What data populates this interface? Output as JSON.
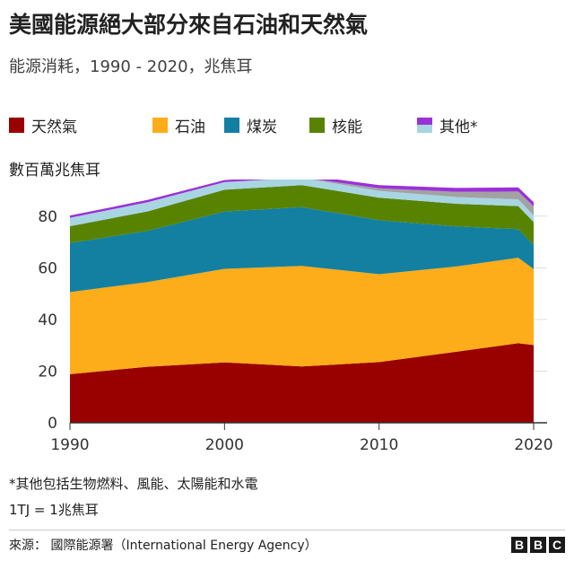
{
  "header": {
    "title": "美國能源絕大部分來自石油和天然氣",
    "subtitle": "能源消耗，1990 - 2020，兆焦耳"
  },
  "legend": [
    {
      "label": "天然氣",
      "color": "#990000"
    },
    {
      "label": "石油",
      "color": "#fdac1a"
    },
    {
      "label": "煤炭",
      "color": "#1380a1"
    },
    {
      "label": "核能",
      "color": "#588300"
    },
    {
      "label": "其他*",
      "colors": [
        "#9b30d9",
        "#a8d5e2"
      ]
    }
  ],
  "chart_data": {
    "type": "area",
    "stacked": true,
    "title": "美國能源絕大部分來自石油和天然氣",
    "subtitle": "能源消耗，1990 - 2020，兆焦耳",
    "ylabel": "數百萬兆焦耳",
    "xlabel": "",
    "x": [
      1990,
      1995,
      2000,
      2005,
      2010,
      2015,
      2019,
      2020
    ],
    "xticks": [
      "1990",
      "2000",
      "2010",
      "2020"
    ],
    "yticks": [
      "0",
      "20",
      "40",
      "60",
      "80"
    ],
    "ylim": [
      0,
      90
    ],
    "series": [
      {
        "name": "天然氣",
        "color": "#990000",
        "values": [
          18.8,
          21.7,
          23.4,
          21.8,
          23.5,
          27.5,
          30.8,
          30.1
        ]
      },
      {
        "name": "石油",
        "color": "#fdac1a",
        "values": [
          31.8,
          32.8,
          36.2,
          38.9,
          34.0,
          33.0,
          33.1,
          29.4
        ]
      },
      {
        "name": "煤炭",
        "color": "#1380a1",
        "values": [
          19.0,
          19.8,
          22.2,
          22.8,
          20.9,
          15.5,
          11.1,
          9.3
        ]
      },
      {
        "name": "核能",
        "color": "#588300",
        "values": [
          6.5,
          7.5,
          8.4,
          8.5,
          8.7,
          8.8,
          8.9,
          8.9
        ]
      },
      {
        "name": "其他* (水電)",
        "color": "#a8d5e2",
        "values": [
          3.2,
          3.5,
          2.9,
          2.8,
          2.7,
          2.6,
          2.6,
          2.6
        ]
      },
      {
        "name": "其他* (風能)",
        "color": "#a2a2a2",
        "values": [
          0.05,
          0.05,
          0.05,
          0.2,
          1.0,
          2.0,
          3.0,
          3.5
        ]
      },
      {
        "name": "其他* (生物燃料、太陽能)",
        "color": "#9b30d9",
        "values": [
          0.9,
          0.9,
          0.8,
          1.0,
          1.2,
          1.5,
          1.6,
          1.6
        ]
      }
    ]
  },
  "footer": {
    "note": "*其他包括生物燃料、風能、太陽能和水電",
    "unit_note": "1TJ = 1兆焦耳",
    "source": "來源：  國際能源署（International Energy Agency）",
    "brand": [
      "B",
      "B",
      "C"
    ]
  }
}
